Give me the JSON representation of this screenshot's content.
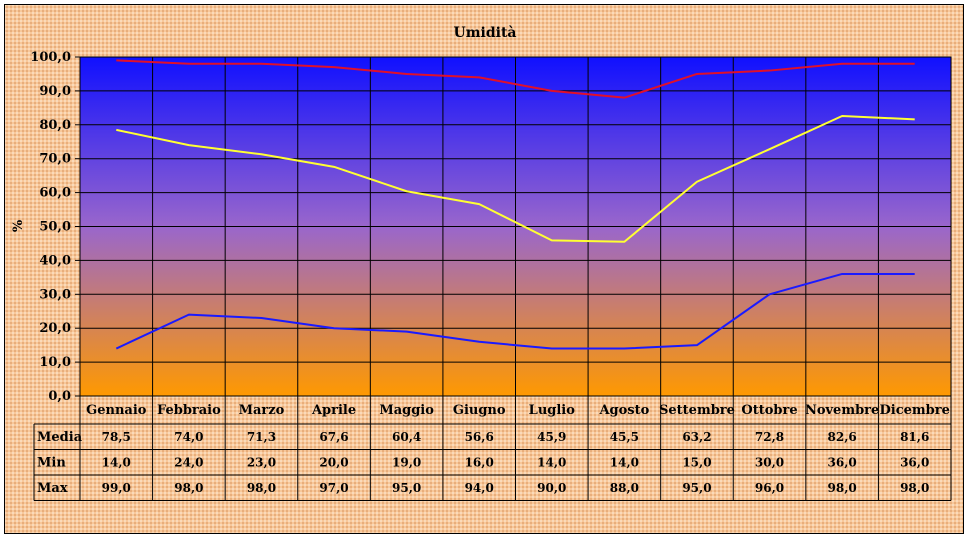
{
  "chart_data": {
    "type": "line",
    "title": "Umidità",
    "ylabel": "%",
    "xlabel": "",
    "ylim": [
      0,
      100
    ],
    "ytick_step": 10,
    "ytick_labels": [
      "0,0",
      "10,0",
      "20,0",
      "30,0",
      "40,0",
      "50,0",
      "60,0",
      "70,0",
      "80,0",
      "90,0",
      "100,0"
    ],
    "grid": true,
    "categories": [
      "Gennaio",
      "Febbraio",
      "Marzo",
      "Aprile",
      "Maggio",
      "Giugno",
      "Luglio",
      "Agosto",
      "Settembre",
      "Ottobre",
      "Novembre",
      "Dicembre"
    ],
    "series": [
      {
        "name": "Media",
        "color": "#ffff33",
        "values": [
          78.5,
          74.0,
          71.3,
          67.6,
          60.4,
          56.6,
          45.9,
          45.5,
          63.2,
          72.8,
          82.6,
          81.6
        ],
        "labels": [
          "78,5",
          "74,0",
          "71,3",
          "67,6",
          "60,4",
          "56,6",
          "45,9",
          "45,5",
          "63,2",
          "72,8",
          "82,6",
          "81,6"
        ]
      },
      {
        "name": "Min",
        "color": "#1a1aff",
        "values": [
          14.0,
          24.0,
          23.0,
          20.0,
          19.0,
          16.0,
          14.0,
          14.0,
          15.0,
          30.0,
          36.0,
          36.0
        ],
        "labels": [
          "14,0",
          "24,0",
          "23,0",
          "20,0",
          "19,0",
          "16,0",
          "14,0",
          "14,0",
          "15,0",
          "30,0",
          "36,0",
          "36,0"
        ]
      },
      {
        "name": "Max",
        "color": "#e0102a",
        "values": [
          99.0,
          98.0,
          98.0,
          97.0,
          95.0,
          94.0,
          90.0,
          88.0,
          95.0,
          96.0,
          98.0,
          98.0
        ],
        "labels": [
          "99,0",
          "98,0",
          "98,0",
          "97,0",
          "95,0",
          "94,0",
          "90,0",
          "88,0",
          "95,0",
          "96,0",
          "98,0",
          "98,0"
        ]
      }
    ]
  },
  "colors": {
    "plot_top": "#1010ff",
    "plot_mid": "#9966cc",
    "plot_bottom": "#ff9900",
    "frame_background": "#f8c89a",
    "grid": "#000000"
  }
}
